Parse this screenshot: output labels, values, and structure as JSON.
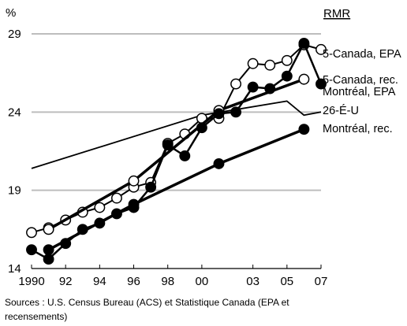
{
  "chart_data": {
    "type": "line",
    "unit_label": "%",
    "legend_title": "RMR",
    "source": "Sources : U.S. Census Bureau (ACS) et Statistique Canada (EPA et recensements)",
    "xlim": [
      1990,
      2007
    ],
    "ylim": [
      14,
      29
    ],
    "x_ticks": [
      1990,
      1992,
      1994,
      1996,
      1998,
      2000,
      2003,
      2005,
      2007
    ],
    "x_tick_labels": [
      "1990",
      "92",
      "94",
      "96",
      "98",
      "00",
      "03",
      "05",
      "07"
    ],
    "y_ticks": [
      14,
      19,
      24,
      29
    ],
    "y_tick_labels": [
      "14",
      "19",
      "24",
      "29"
    ],
    "gridlines": "horizontal",
    "series": [
      {
        "name": "5-Canada, EPA",
        "marker": "open-circle",
        "color": "#000000",
        "x": [
          1990,
          1991,
          1992,
          1993,
          1994,
          1995,
          1996,
          1997,
          1998,
          1999,
          2000,
          2001,
          2002,
          2003,
          2004,
          2005,
          2006,
          2007
        ],
        "y": [
          16.3,
          16.6,
          17.1,
          17.6,
          17.9,
          18.5,
          19.2,
          19.5,
          22.0,
          22.6,
          23.6,
          23.6,
          25.8,
          27.1,
          27.0,
          27.3,
          28.3,
          28.0
        ]
      },
      {
        "name": "Montréal, EPA",
        "marker": "filled-circle",
        "color": "#000000",
        "x": [
          1990,
          1991,
          1992,
          1993,
          1994,
          1995,
          1996,
          1997,
          1998,
          1999,
          2000,
          2001,
          2002,
          2003,
          2004,
          2005,
          2006,
          2007
        ],
        "y": [
          15.2,
          14.6,
          15.6,
          16.5,
          16.9,
          17.5,
          17.9,
          19.2,
          21.9,
          21.2,
          23.0,
          23.9,
          24.0,
          25.6,
          25.5,
          26.3,
          28.4,
          25.8
        ]
      },
      {
        "name": "5-Canada, rec.",
        "marker": "open-circle",
        "color": "#000000",
        "x": [
          1991,
          1996,
          2001,
          2006
        ],
        "y": [
          16.5,
          19.6,
          24.1,
          26.1
        ]
      },
      {
        "name": "Montréal, rec.",
        "marker": "filled-circle",
        "color": "#000000",
        "x": [
          1991,
          1996,
          2001,
          2006
        ],
        "y": [
          15.2,
          18.1,
          20.7,
          22.9
        ]
      },
      {
        "name": "26-É-U",
        "marker": "none",
        "color": "#000000",
        "x": [
          1990,
          2000,
          2005,
          2006,
          2007
        ],
        "y": [
          20.4,
          23.8,
          24.7,
          23.8,
          24.0
        ]
      }
    ]
  }
}
